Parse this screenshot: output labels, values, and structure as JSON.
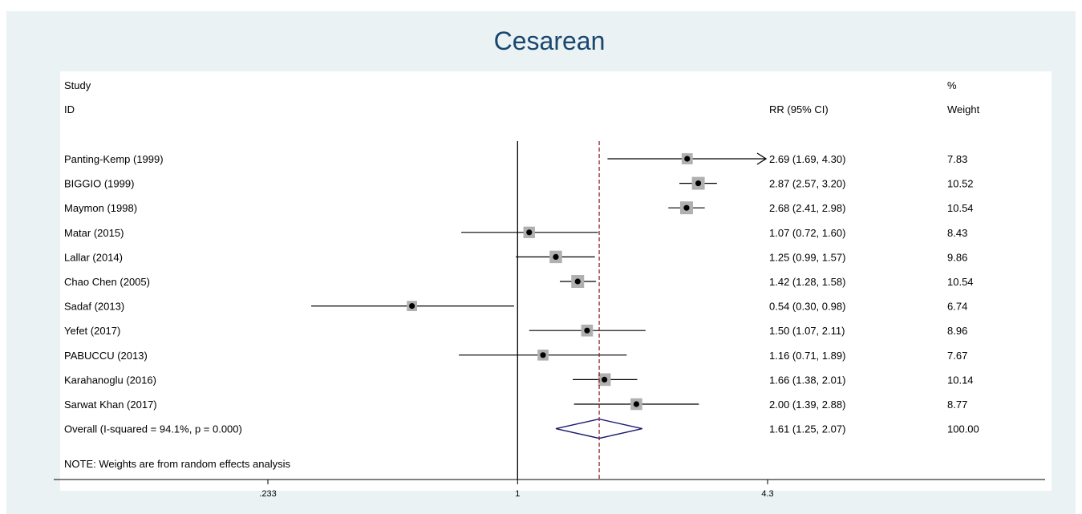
{
  "chart_data": {
    "type": "forest",
    "title": "Cesarean",
    "headers": {
      "study_line1": "Study",
      "study_line2": "ID",
      "ci": "RR (95% CI)",
      "weight_line1": "%",
      "weight_line2": "Weight"
    },
    "xscale": "log",
    "xlim": [
      0.233,
      4.3
    ],
    "xticks": [
      0.233,
      1,
      4.3
    ],
    "xtick_labels": [
      ".233",
      "1",
      "4.3"
    ],
    "null_line": 1,
    "studies": [
      {
        "label": "Panting-Kemp (1999)",
        "rr": 2.69,
        "lo": 1.69,
        "hi": 4.3,
        "ci_text": "2.69 (1.69, 4.30)",
        "weight": "7.83",
        "arrow_right": true
      },
      {
        "label": "BIGGIO (1999)",
        "rr": 2.87,
        "lo": 2.57,
        "hi": 3.2,
        "ci_text": "2.87 (2.57, 3.20)",
        "weight": "10.52"
      },
      {
        "label": "Maymon (1998)",
        "rr": 2.68,
        "lo": 2.41,
        "hi": 2.98,
        "ci_text": "2.68 (2.41, 2.98)",
        "weight": "10.54"
      },
      {
        "label": "Matar (2015)",
        "rr": 1.07,
        "lo": 0.72,
        "hi": 1.6,
        "ci_text": "1.07 (0.72, 1.60)",
        "weight": "8.43"
      },
      {
        "label": "Lallar (2014)",
        "rr": 1.25,
        "lo": 0.99,
        "hi": 1.57,
        "ci_text": "1.25 (0.99, 1.57)",
        "weight": "9.86"
      },
      {
        "label": "Chao Chen (2005)",
        "rr": 1.42,
        "lo": 1.28,
        "hi": 1.58,
        "ci_text": "1.42 (1.28, 1.58)",
        "weight": "10.54"
      },
      {
        "label": "Sadaf (2013)",
        "rr": 0.54,
        "lo": 0.3,
        "hi": 0.98,
        "ci_text": "0.54 (0.30, 0.98)",
        "weight": "6.74"
      },
      {
        "label": "Yefet (2017)",
        "rr": 1.5,
        "lo": 1.07,
        "hi": 2.11,
        "ci_text": "1.50 (1.07, 2.11)",
        "weight": "8.96"
      },
      {
        "label": "PABUCCU (2013)",
        "rr": 1.16,
        "lo": 0.71,
        "hi": 1.89,
        "ci_text": "1.16 (0.71, 1.89)",
        "weight": "7.67"
      },
      {
        "label": "Karahanoglu (2016)",
        "rr": 1.66,
        "lo": 1.38,
        "hi": 2.01,
        "ci_text": "1.66 (1.38, 2.01)",
        "weight": "10.14"
      },
      {
        "label": "Sarwat Khan (2017)",
        "rr": 2.0,
        "lo": 1.39,
        "hi": 2.88,
        "ci_text": "2.00 (1.39, 2.88)",
        "weight": "8.77"
      }
    ],
    "overall": {
      "label": "Overall  (I-squared = 94.1%, p = 0.000)",
      "rr": 1.61,
      "lo": 1.25,
      "hi": 2.07,
      "ci_text": "1.61 (1.25, 2.07)",
      "weight": "100.00"
    },
    "note": "NOTE: Weights are from random effects analysis",
    "colors": {
      "title": "#1a476f",
      "background": "#eaf2f3",
      "diamond": "#1a1a6e",
      "overall_line": "#8b1a1a",
      "weight_box": "#b0b0b0"
    }
  }
}
